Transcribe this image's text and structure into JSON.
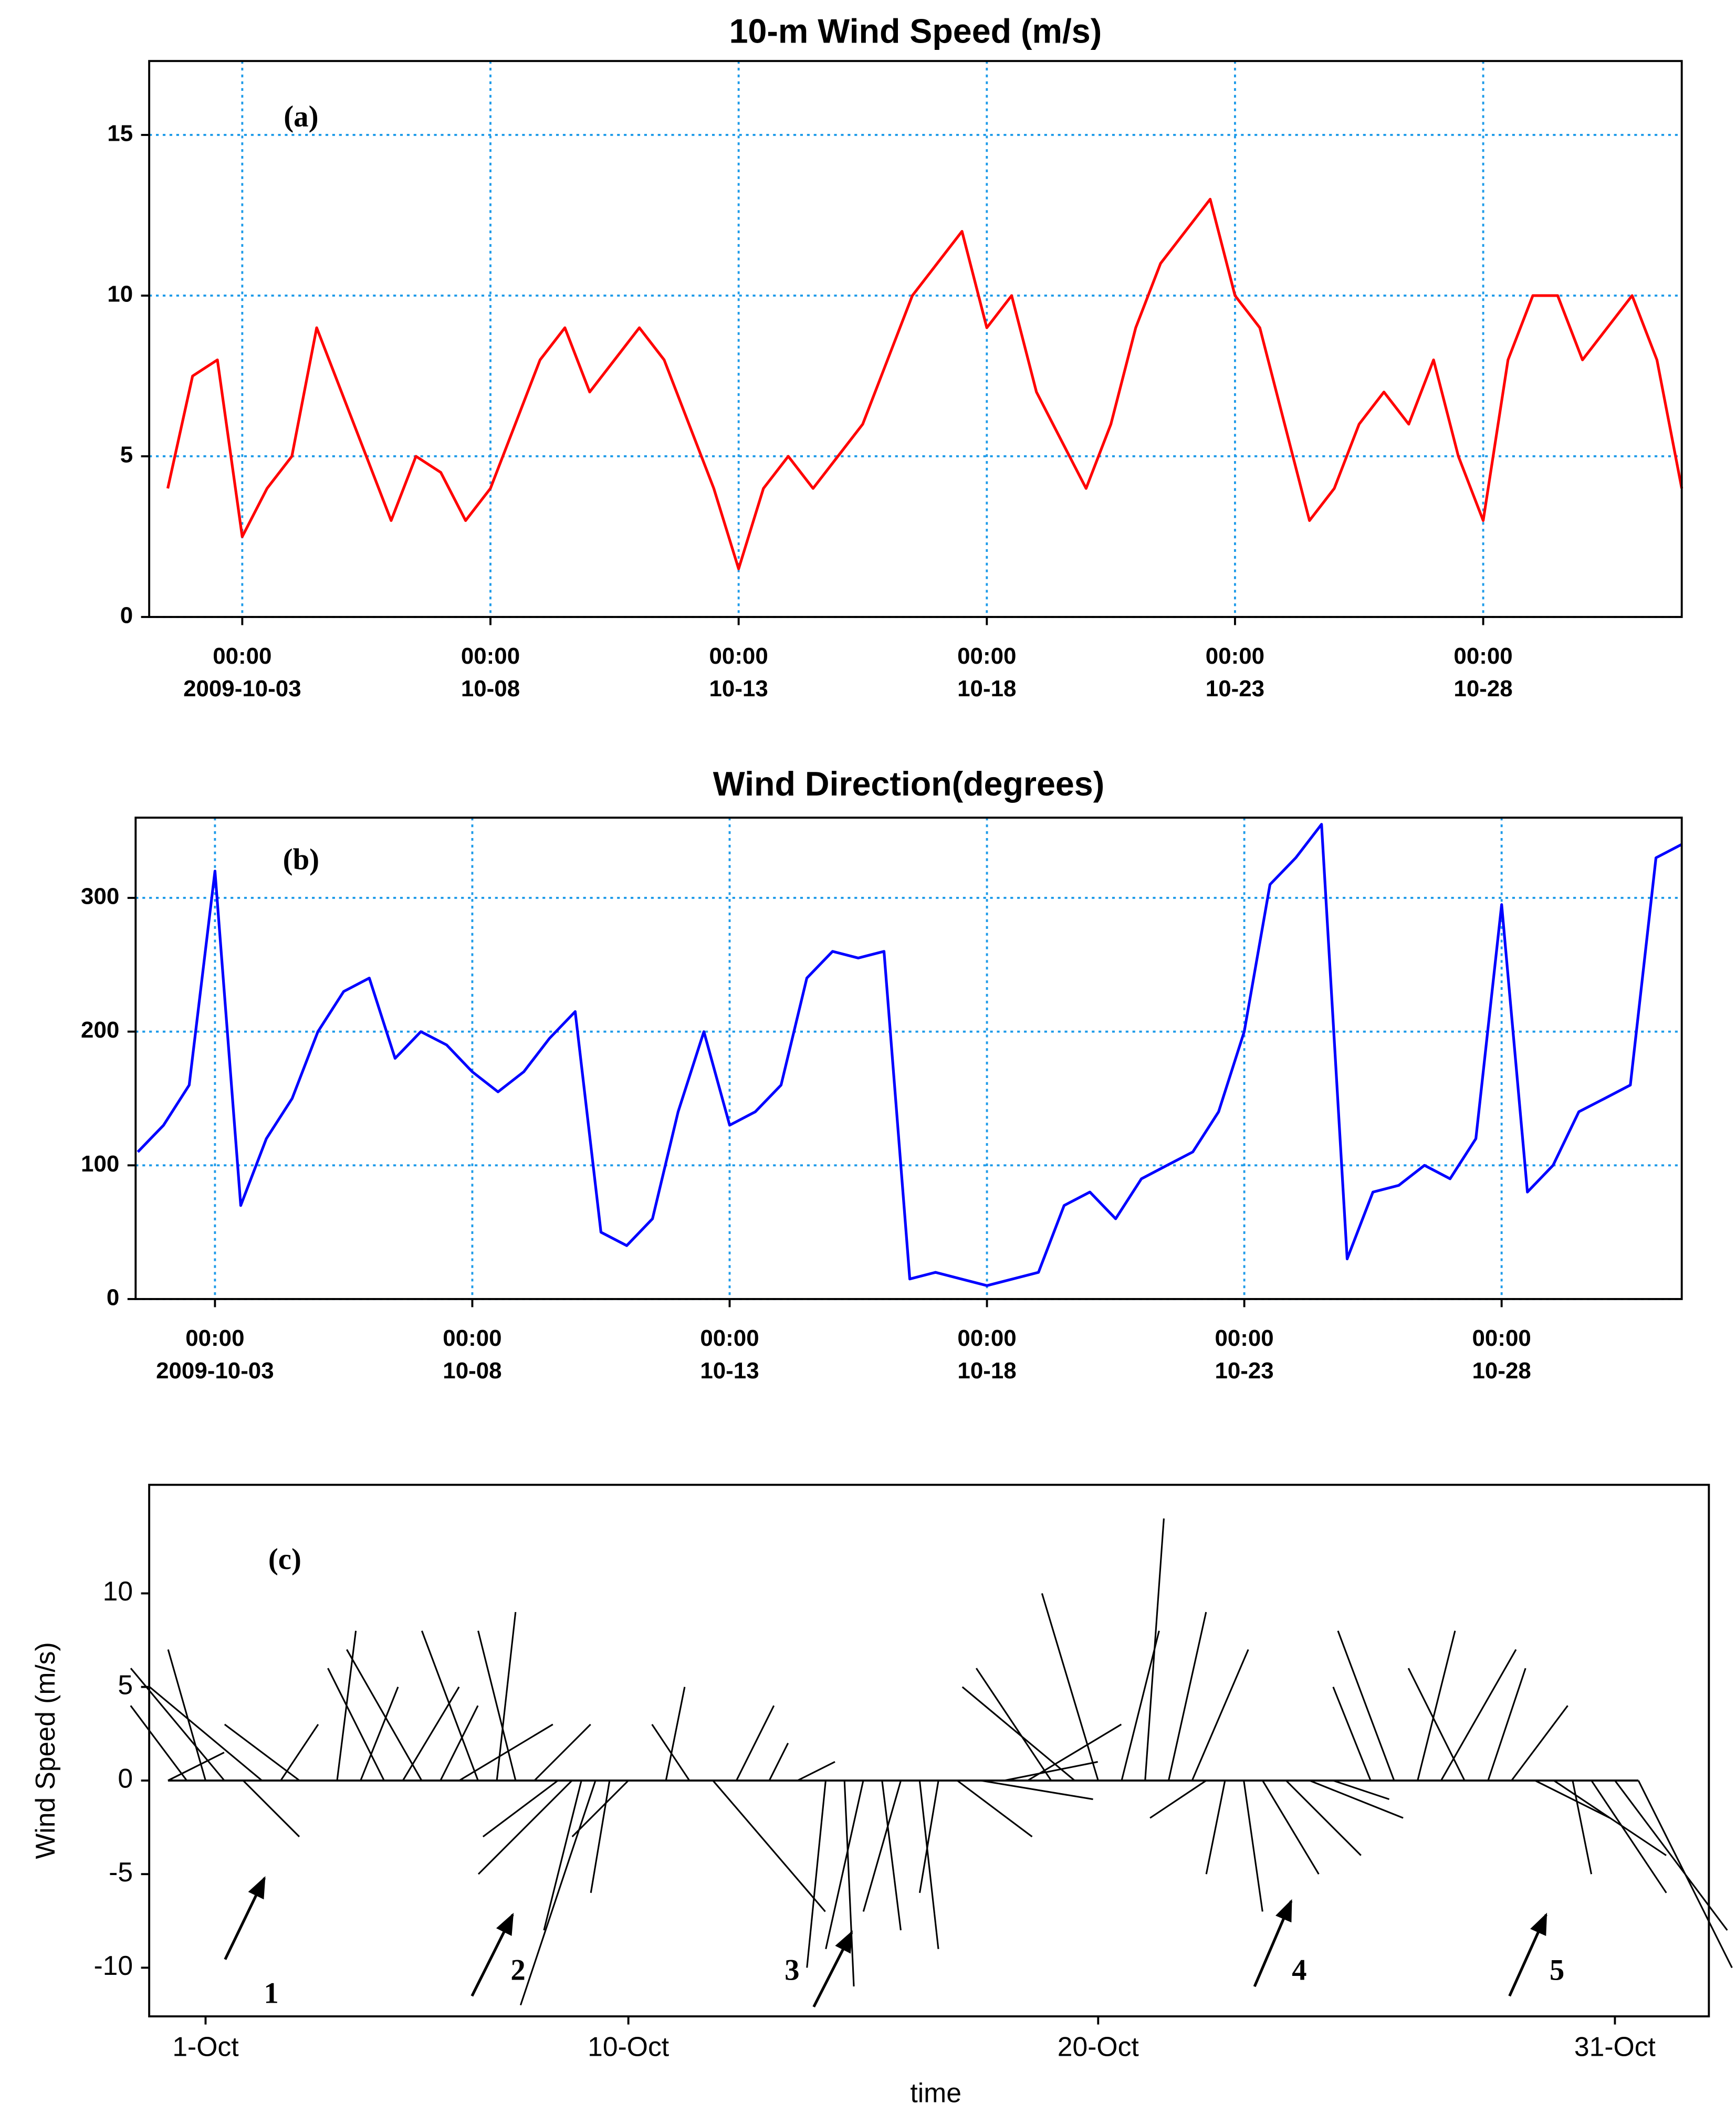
{
  "chart_data": [
    {
      "type": "line",
      "title": "10-m Wind Speed (m/s)",
      "annotations": [
        "(a)"
      ],
      "grid": true,
      "x": [
        "2009-10-01 12:00",
        "2009-10-02 00:00",
        "2009-10-02 12:00",
        "2009-10-03 00:00",
        "2009-10-03 12:00",
        "2009-10-04 00:00",
        "2009-10-04 12:00",
        "2009-10-05 00:00",
        "2009-10-05 12:00",
        "2009-10-06 00:00",
        "2009-10-06 12:00",
        "2009-10-07 00:00",
        "2009-10-07 12:00",
        "2009-10-08 00:00",
        "2009-10-08 12:00",
        "2009-10-09 00:00",
        "2009-10-09 12:00",
        "2009-10-10 00:00",
        "2009-10-10 12:00",
        "2009-10-11 00:00",
        "2009-10-11 12:00",
        "2009-10-12 00:00",
        "2009-10-12 12:00",
        "2009-10-13 00:00",
        "2009-10-13 12:00",
        "2009-10-14 00:00",
        "2009-10-14 12:00",
        "2009-10-15 00:00",
        "2009-10-15 12:00",
        "2009-10-16 00:00",
        "2009-10-16 12:00",
        "2009-10-17 00:00",
        "2009-10-17 12:00",
        "2009-10-18 00:00",
        "2009-10-18 12:00",
        "2009-10-19 00:00",
        "2009-10-19 12:00",
        "2009-10-20 00:00",
        "2009-10-20 12:00",
        "2009-10-21 00:00",
        "2009-10-21 12:00",
        "2009-10-22 00:00",
        "2009-10-22 12:00",
        "2009-10-23 00:00",
        "2009-10-23 12:00",
        "2009-10-24 00:00",
        "2009-10-24 12:00",
        "2009-10-25 00:00",
        "2009-10-25 12:00",
        "2009-10-26 00:00",
        "2009-10-26 12:00",
        "2009-10-27 00:00",
        "2009-10-27 12:00",
        "2009-10-28 00:00",
        "2009-10-28 12:00",
        "2009-10-29 00:00",
        "2009-10-29 12:00",
        "2009-10-30 00:00",
        "2009-10-30 12:00",
        "2009-10-31 00:00",
        "2009-10-31 12:00",
        "2009-11-01 00:00"
      ],
      "series": [
        {
          "color": "#ff0000",
          "values": [
            4,
            7.5,
            8,
            2.5,
            4,
            5,
            9,
            7,
            5,
            3,
            5,
            4.5,
            3,
            4,
            6,
            8,
            9,
            7,
            8,
            9,
            8,
            6,
            4,
            1.5,
            4,
            5,
            4,
            5,
            6,
            8,
            10,
            11,
            12,
            9,
            10,
            7,
            5.5,
            4,
            6,
            9,
            11,
            12,
            13,
            10,
            9,
            6,
            3,
            4,
            6,
            7,
            6,
            8,
            5,
            3,
            8,
            10,
            10,
            8,
            9,
            10,
            8,
            4
          ]
        }
      ],
      "xlim": [
        "2009-10-01 03:00",
        "2009-11-01 00:00"
      ],
      "xticks": [
        {
          "value": "2009-10-03 00:00",
          "label": [
            "00:00",
            "2009-10-03"
          ]
        },
        {
          "value": "2009-10-08 00:00",
          "label": [
            "00:00",
            "10-08"
          ]
        },
        {
          "value": "2009-10-13 00:00",
          "label": [
            "00:00",
            "10-13"
          ]
        },
        {
          "value": "2009-10-18 00:00",
          "label": [
            "00:00",
            "10-18"
          ]
        },
        {
          "value": "2009-10-23 00:00",
          "label": [
            "00:00",
            "10-23"
          ]
        },
        {
          "value": "2009-10-28 00:00",
          "label": [
            "00:00",
            "10-28"
          ]
        }
      ],
      "ylim": [
        0,
        17.3
      ],
      "yticks": [
        0,
        5,
        10,
        15
      ]
    },
    {
      "type": "line",
      "title": "Wind Direction(degrees)",
      "annotations": [
        "(b)"
      ],
      "grid": true,
      "x": [
        "2009-10-01 12:00",
        "2009-10-02 00:00",
        "2009-10-02 12:00",
        "2009-10-03 00:00",
        "2009-10-03 12:00",
        "2009-10-04 00:00",
        "2009-10-04 12:00",
        "2009-10-05 00:00",
        "2009-10-05 12:00",
        "2009-10-06 00:00",
        "2009-10-06 12:00",
        "2009-10-07 00:00",
        "2009-10-07 12:00",
        "2009-10-08 00:00",
        "2009-10-08 12:00",
        "2009-10-09 00:00",
        "2009-10-09 12:00",
        "2009-10-10 00:00",
        "2009-10-10 12:00",
        "2009-10-11 00:00",
        "2009-10-11 12:00",
        "2009-10-12 00:00",
        "2009-10-12 12:00",
        "2009-10-13 00:00",
        "2009-10-13 12:00",
        "2009-10-14 00:00",
        "2009-10-14 12:00",
        "2009-10-15 00:00",
        "2009-10-15 12:00",
        "2009-10-16 00:00",
        "2009-10-16 12:00",
        "2009-10-17 00:00",
        "2009-10-17 12:00",
        "2009-10-18 00:00",
        "2009-10-18 12:00",
        "2009-10-19 00:00",
        "2009-10-19 12:00",
        "2009-10-20 00:00",
        "2009-10-20 12:00",
        "2009-10-21 00:00",
        "2009-10-21 12:00",
        "2009-10-22 00:00",
        "2009-10-22 12:00",
        "2009-10-23 00:00",
        "2009-10-23 12:00",
        "2009-10-24 00:00",
        "2009-10-24 12:00",
        "2009-10-25 00:00",
        "2009-10-25 12:00",
        "2009-10-26 00:00",
        "2009-10-26 12:00",
        "2009-10-27 00:00",
        "2009-10-27 12:00",
        "2009-10-28 00:00",
        "2009-10-28 12:00",
        "2009-10-29 00:00",
        "2009-10-29 12:00",
        "2009-10-30 00:00",
        "2009-10-30 12:00",
        "2009-10-31 00:00",
        "2009-10-31 12:00"
      ],
      "series": [
        {
          "color": "#0000ff",
          "values": [
            110,
            130,
            160,
            320,
            70,
            120,
            150,
            200,
            230,
            240,
            180,
            200,
            190,
            170,
            155,
            170,
            195,
            215,
            50,
            40,
            60,
            140,
            200,
            130,
            140,
            160,
            240,
            260,
            255,
            260,
            15,
            20,
            15,
            10,
            15,
            20,
            70,
            80,
            60,
            90,
            100,
            110,
            140,
            200,
            310,
            330,
            355,
            30,
            80,
            85,
            100,
            90,
            120,
            295,
            80,
            100,
            140,
            150,
            160,
            330,
            340
          ]
        }
      ],
      "xlim": [
        "2009-10-01 11:00",
        "2009-10-31 12:00"
      ],
      "xticks": [
        {
          "value": "2009-10-03 00:00",
          "label": [
            "00:00",
            "2009-10-03"
          ]
        },
        {
          "value": "2009-10-08 00:00",
          "label": [
            "00:00",
            "10-08"
          ]
        },
        {
          "value": "2009-10-13 00:00",
          "label": [
            "00:00",
            "10-13"
          ]
        },
        {
          "value": "2009-10-18 00:00",
          "label": [
            "00:00",
            "10-18"
          ]
        },
        {
          "value": "2009-10-23 00:00",
          "label": [
            "00:00",
            "10-23"
          ]
        },
        {
          "value": "2009-10-28 00:00",
          "label": [
            "00:00",
            "10-28"
          ]
        }
      ],
      "ylim": [
        0,
        360
      ],
      "yticks": [
        0,
        100,
        200,
        300
      ]
    },
    {
      "type": "stick",
      "xlabel": "time",
      "ylabel": "Wind Speed (m/s)",
      "annotations": [
        "(c)",
        "1",
        "2",
        "3",
        "4",
        "5"
      ],
      "grid": false,
      "color": "#000000",
      "x": [
        0.2,
        0.6,
        1.0,
        1.4,
        1.8,
        2.2,
        2.6,
        3.0,
        3.8,
        4.3,
        4.8,
        5.2,
        5.6,
        6.0,
        6.4,
        6.8,
        7.2,
        7.6,
        8.0,
        8.5,
        8.8,
        9.0,
        9.3,
        9.6,
        10.0,
        10.8,
        11.3,
        11.8,
        12.3,
        13.0,
        13.6,
        14.2,
        14.6,
        15.0,
        15.4,
        15.8,
        16.2,
        16.6,
        17.0,
        17.5,
        18.0,
        18.5,
        19.0,
        19.5,
        20.0,
        20.5,
        21.0,
        21.5,
        22.0,
        22.3,
        22.7,
        23.1,
        23.5,
        24.0,
        24.5,
        25.0,
        25.8,
        26.3,
        26.8,
        27.3,
        27.8,
        28.3,
        28.8,
        29.3,
        29.7,
        30.1,
        30.5,
        31.0,
        31.5
      ],
      "u": [
        3,
        -3,
        -2,
        -5,
        3,
        -6,
        2,
        -4,
        1,
        2,
        -3,
        3,
        -4,
        2,
        5,
        -3,
        1,
        -2,
        3,
        -4,
        -5,
        -2,
        -4,
        -1,
        -3,
        1,
        -2,
        6,
        2,
        1,
        2,
        -1,
        0.5,
        -2,
        1,
        -2,
        1,
        -1,
        4,
        6,
        5,
        5,
        -4,
        -6,
        -3,
        2,
        1,
        2,
        3,
        -3,
        -1,
        1,
        3,
        4,
        5,
        3,
        -2,
        -3,
        2,
        4,
        -3,
        2,
        3,
        4,
        6,
        1,
        4,
        6,
        5
      ],
      "v": [
        1.5,
        4,
        7,
        6,
        -3,
        5,
        3,
        3,
        8,
        5,
        6,
        5,
        7,
        4,
        3,
        8,
        9,
        8,
        3,
        -3,
        -5,
        -8,
        -12,
        -6,
        -3,
        5,
        3,
        -7,
        4,
        2,
        1,
        -10,
        -11,
        -9,
        -8,
        -7,
        -9,
        -6,
        -3,
        -1,
        1,
        3,
        6,
        5,
        10,
        8,
        14,
        9,
        7,
        -2,
        -5,
        -7,
        -5,
        -4,
        -2,
        -1,
        5,
        8,
        8,
        7,
        6,
        6,
        4,
        -2,
        -4,
        -5,
        -6,
        -8,
        -10
      ],
      "xlim": [
        -0.2,
        33.0
      ],
      "xticks": [
        {
          "value": 1,
          "label": "1-Oct"
        },
        {
          "value": 10,
          "label": "10-Oct"
        },
        {
          "value": 20,
          "label": "20-Oct"
        },
        {
          "value": 31,
          "label": "31-Oct"
        }
      ],
      "ylim": [
        -12.6,
        15.8
      ],
      "yticks": [
        -10,
        -5,
        0,
        5,
        10
      ]
    }
  ]
}
